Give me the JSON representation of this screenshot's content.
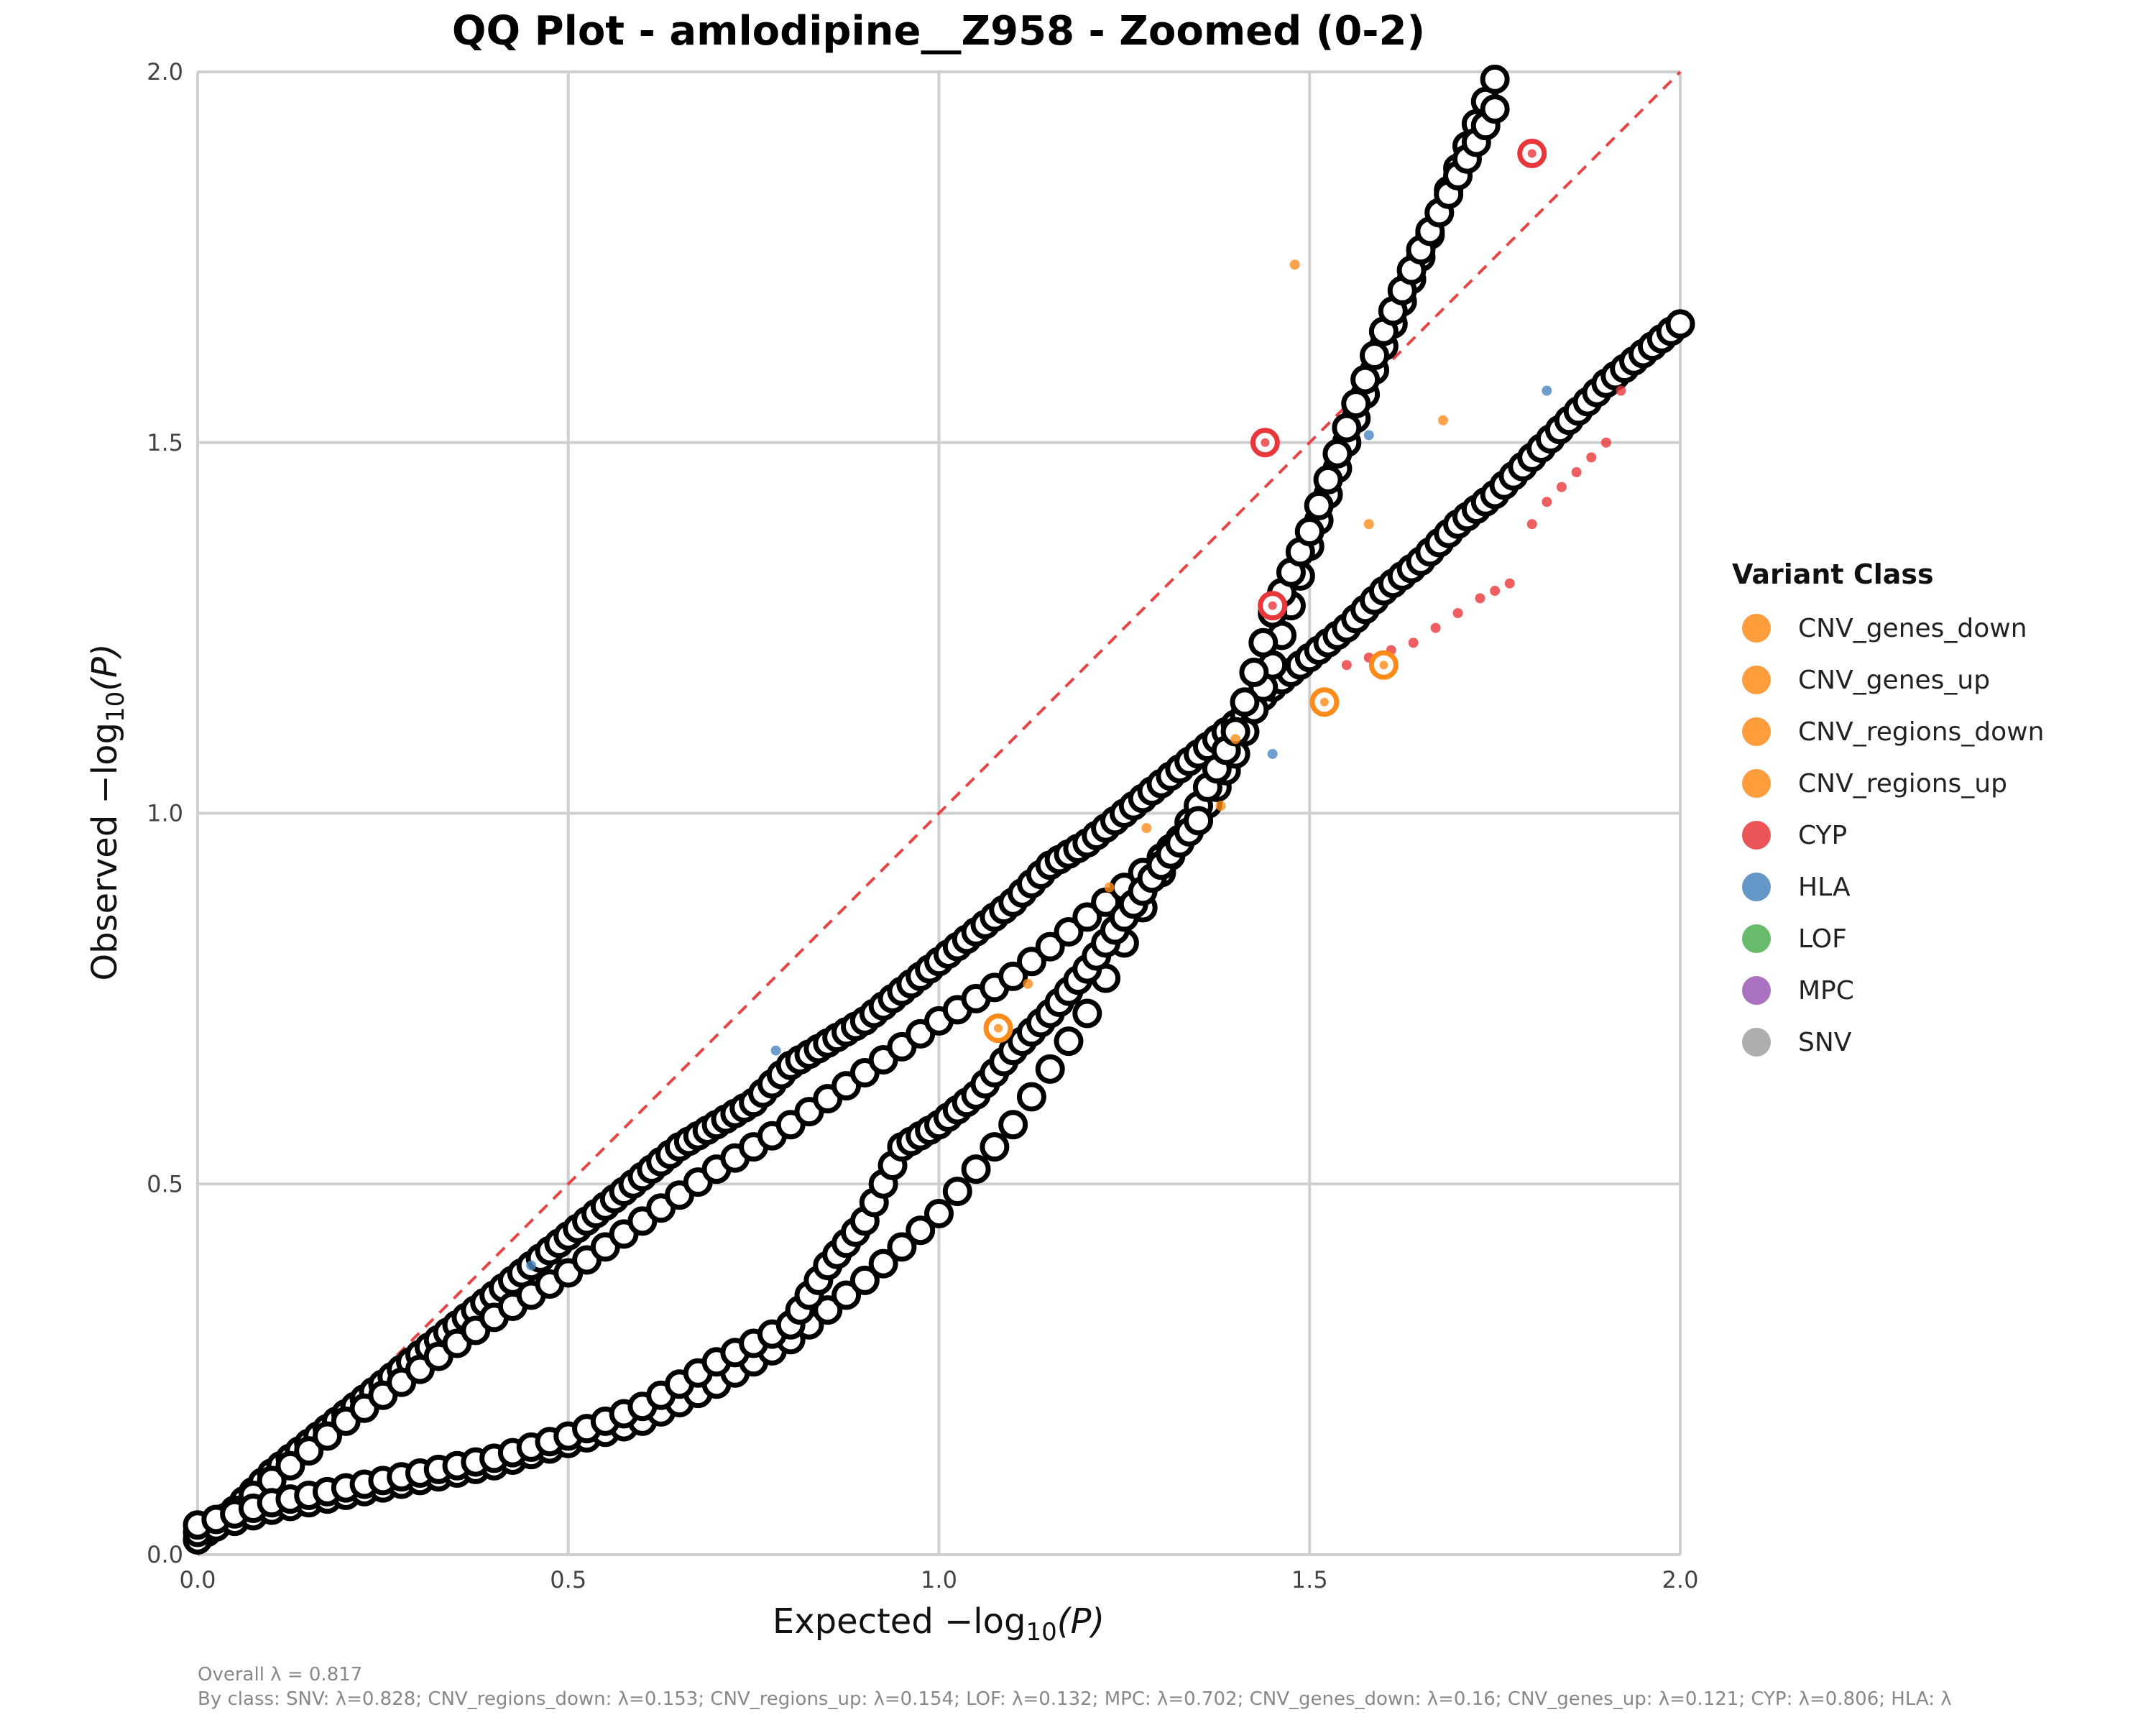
{
  "chart_data": {
    "type": "scatter",
    "title": "QQ Plot - amlodipine__Z958 - Zoomed (0-2)",
    "xlabel_prefix": "Expected −log",
    "ylabel_prefix": "Observed −log",
    "label_subscript": "10",
    "label_arg": "(P)",
    "xlim": [
      0,
      2
    ],
    "ylim": [
      0,
      2
    ],
    "x_ticks": [
      "0.0",
      "0.5",
      "1.0",
      "1.5",
      "2.0"
    ],
    "y_ticks": [
      "0.0",
      "0.5",
      "1.0",
      "1.5",
      "2.0"
    ],
    "grid": true,
    "reference_line": {
      "style": "dashed",
      "color": "#e64545",
      "from": [
        0,
        0
      ],
      "to": [
        2,
        2
      ]
    },
    "legend": {
      "title": "Variant Class",
      "placement": "right",
      "entries": [
        {
          "name": "CNV_genes_down",
          "color": "#ff8c1a"
        },
        {
          "name": "CNV_genes_up",
          "color": "#ff8c1a"
        },
        {
          "name": "CNV_regions_down",
          "color": "#ff8c1a"
        },
        {
          "name": "CNV_regions_up",
          "color": "#ff8c1a"
        },
        {
          "name": "CYP",
          "color": "#e8373a"
        },
        {
          "name": "HLA",
          "color": "#4a86c0"
        },
        {
          "name": "LOF",
          "color": "#4caf50"
        },
        {
          "name": "MPC",
          "color": "#9c59b6"
        },
        {
          "name": "SNV",
          "color": "#a0a0a0"
        }
      ]
    },
    "series": [
      {
        "name": "SNV",
        "color": "#000000",
        "points": [
          [
            0,
            0.02
          ],
          [
            0.05,
            0.06
          ],
          [
            0.1,
            0.11
          ],
          [
            0.15,
            0.15
          ],
          [
            0.2,
            0.19
          ],
          [
            0.25,
            0.23
          ],
          [
            0.3,
            0.27
          ],
          [
            0.35,
            0.31
          ],
          [
            0.4,
            0.35
          ],
          [
            0.45,
            0.39
          ],
          [
            0.5,
            0.43
          ],
          [
            0.55,
            0.47
          ],
          [
            0.6,
            0.51
          ],
          [
            0.65,
            0.55
          ],
          [
            0.7,
            0.58
          ],
          [
            0.75,
            0.61
          ],
          [
            0.8,
            0.66
          ],
          [
            0.85,
            0.69
          ],
          [
            0.9,
            0.72
          ],
          [
            0.95,
            0.76
          ],
          [
            1.0,
            0.8
          ],
          [
            1.05,
            0.84
          ],
          [
            1.1,
            0.88
          ],
          [
            1.15,
            0.93
          ],
          [
            1.2,
            0.96
          ],
          [
            1.25,
            1.0
          ],
          [
            1.3,
            1.04
          ],
          [
            1.35,
            1.08
          ],
          [
            1.4,
            1.12
          ],
          [
            1.45,
            1.17
          ],
          [
            1.5,
            1.21
          ],
          [
            1.55,
            1.25
          ],
          [
            1.6,
            1.3
          ],
          [
            1.65,
            1.34
          ],
          [
            1.7,
            1.39
          ],
          [
            1.75,
            1.43
          ],
          [
            1.8,
            1.48
          ],
          [
            1.85,
            1.53
          ],
          [
            1.9,
            1.58
          ],
          [
            1.95,
            1.62
          ],
          [
            2.0,
            1.66
          ]
        ]
      },
      {
        "name": "MPC",
        "color": "#000000",
        "points": [
          [
            0,
            0.02
          ],
          [
            0.1,
            0.1
          ],
          [
            0.2,
            0.18
          ],
          [
            0.3,
            0.25
          ],
          [
            0.4,
            0.32
          ],
          [
            0.5,
            0.38
          ],
          [
            0.6,
            0.45
          ],
          [
            0.7,
            0.52
          ],
          [
            0.8,
            0.58
          ],
          [
            0.9,
            0.65
          ],
          [
            1.0,
            0.72
          ],
          [
            1.1,
            0.78
          ],
          [
            1.2,
            0.86
          ],
          [
            1.3,
            0.94
          ],
          [
            1.35,
            0.99
          ],
          [
            1.4,
            1.08
          ],
          [
            1.45,
            1.2
          ],
          [
            1.5,
            1.36
          ],
          [
            1.55,
            1.5
          ],
          [
            1.6,
            1.63
          ],
          [
            1.65,
            1.75
          ],
          [
            1.7,
            1.87
          ],
          [
            1.75,
            1.99
          ]
        ]
      },
      {
        "name": "CNV_regions_down",
        "color": "#000000",
        "points": [
          [
            0,
            0.03
          ],
          [
            0.1,
            0.06
          ],
          [
            0.2,
            0.08
          ],
          [
            0.3,
            0.1
          ],
          [
            0.4,
            0.12
          ],
          [
            0.5,
            0.15
          ],
          [
            0.6,
            0.18
          ],
          [
            0.7,
            0.23
          ],
          [
            0.8,
            0.29
          ],
          [
            0.9,
            0.37
          ],
          [
            1.0,
            0.46
          ],
          [
            1.1,
            0.58
          ],
          [
            1.2,
            0.73
          ],
          [
            1.3,
            0.92
          ],
          [
            1.35,
            1.01
          ],
          [
            1.4,
            1.11
          ],
          [
            1.45,
            1.27
          ],
          [
            1.5,
            1.38
          ],
          [
            1.55,
            1.52
          ],
          [
            1.6,
            1.65
          ],
          [
            1.65,
            1.76
          ],
          [
            1.7,
            1.86
          ],
          [
            1.75,
            1.95
          ]
        ]
      },
      {
        "name": "CNV_regions_up",
        "color": "#000000",
        "points": [
          [
            0,
            0.04
          ],
          [
            0.1,
            0.07
          ],
          [
            0.2,
            0.09
          ],
          [
            0.3,
            0.11
          ],
          [
            0.4,
            0.13
          ],
          [
            0.5,
            0.16
          ],
          [
            0.6,
            0.2
          ],
          [
            0.7,
            0.26
          ],
          [
            0.8,
            0.31
          ],
          [
            0.85,
            0.39
          ],
          [
            0.9,
            0.45
          ],
          [
            0.95,
            0.55
          ],
          [
            1.0,
            0.58
          ],
          [
            1.05,
            0.62
          ],
          [
            1.1,
            0.68
          ],
          [
            1.15,
            0.73
          ],
          [
            1.2,
            0.79
          ],
          [
            1.25,
            0.86
          ],
          [
            1.3,
            0.93
          ],
          [
            1.35,
            0.99
          ]
        ]
      },
      {
        "name": "CYP",
        "color": "#e8373a",
        "points": [
          [
            1.55,
            1.2
          ],
          [
            1.58,
            1.21
          ],
          [
            1.61,
            1.22
          ],
          [
            1.64,
            1.23
          ],
          [
            1.67,
            1.25
          ],
          [
            1.7,
            1.27
          ],
          [
            1.73,
            1.29
          ],
          [
            1.75,
            1.3
          ],
          [
            1.77,
            1.31
          ],
          [
            1.8,
            1.39
          ],
          [
            1.82,
            1.42
          ],
          [
            1.84,
            1.44
          ],
          [
            1.86,
            1.46
          ],
          [
            1.88,
            1.48
          ],
          [
            1.9,
            1.5
          ],
          [
            1.92,
            1.57
          ]
        ]
      },
      {
        "name": "CNV_genes_down",
        "color": "#ff8c1a",
        "points": [
          [
            1.48,
            1.74
          ],
          [
            1.58,
            1.39
          ],
          [
            1.68,
            1.53
          ],
          [
            1.4,
            1.1
          ],
          [
            1.38,
            1.01
          ],
          [
            1.12,
            0.77
          ],
          [
            1.23,
            0.9
          ],
          [
            1.28,
            0.98
          ]
        ]
      },
      {
        "name": "HLA",
        "color": "#4a86c0",
        "points": [
          [
            1.6,
            1.2
          ],
          [
            1.45,
            1.08
          ],
          [
            0.78,
            0.68
          ],
          [
            0.45,
            0.39
          ],
          [
            1.82,
            1.57
          ],
          [
            1.58,
            1.51
          ]
        ]
      }
    ],
    "highlighted_points": [
      {
        "class": "CYP",
        "x": 1.44,
        "y": 1.5
      },
      {
        "class": "CYP",
        "x": 1.8,
        "y": 1.89
      },
      {
        "class": "CNV_genes_down",
        "x": 1.52,
        "y": 1.15
      },
      {
        "class": "CNV_genes_down",
        "x": 1.6,
        "y": 1.2
      },
      {
        "class": "CNV_genes_down",
        "x": 1.08,
        "y": 0.71
      },
      {
        "class": "CYP",
        "x": 1.45,
        "y": 1.28
      }
    ],
    "notes_overall": "Overall λ = 0.817",
    "notes_by_class": "By class: SNV: λ=0.828; CNV_regions_down: λ=0.153; CNV_regions_up: λ=0.154; LOF: λ=0.132; MPC: λ=0.702; CNV_genes_down: λ=0.16; CNV_genes_up: λ=0.121; CYP: λ=0.806; HLA: λ"
  }
}
